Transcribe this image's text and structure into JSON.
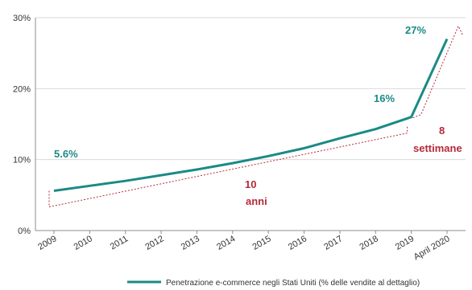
{
  "chart_data": {
    "type": "line",
    "categories": [
      "2009",
      "2010",
      "2011",
      "2012",
      "2013",
      "2014",
      "2015",
      "2016",
      "2017",
      "2018",
      "2019",
      "April 2020"
    ],
    "series": [
      {
        "name": "Penetrazione e-commerce negli Stati Uniti (% delle vendite al dettaglio)",
        "values": [
          5.6,
          6.3,
          7.0,
          7.8,
          8.6,
          9.5,
          10.5,
          11.6,
          13.0,
          14.3,
          16.0,
          27.0
        ]
      }
    ],
    "y_ticks": [
      "0%",
      "10%",
      "20%",
      "30%"
    ],
    "ylim": [
      0,
      30
    ],
    "grid": "horizontal",
    "legend_position": "bottom-right",
    "annotations": {
      "start_value": "5.6%",
      "value_2019": "16%",
      "value_2020": "27%",
      "span_10_years_num": "10",
      "span_10_years_word": "anni",
      "span_8_weeks_num": "8",
      "span_8_weeks_word": "settimane"
    },
    "colors": {
      "line": "#1a8a86",
      "highlight": "#b52a3a",
      "grid": "#d9d9d9",
      "axis": "#8c8c8c"
    }
  }
}
